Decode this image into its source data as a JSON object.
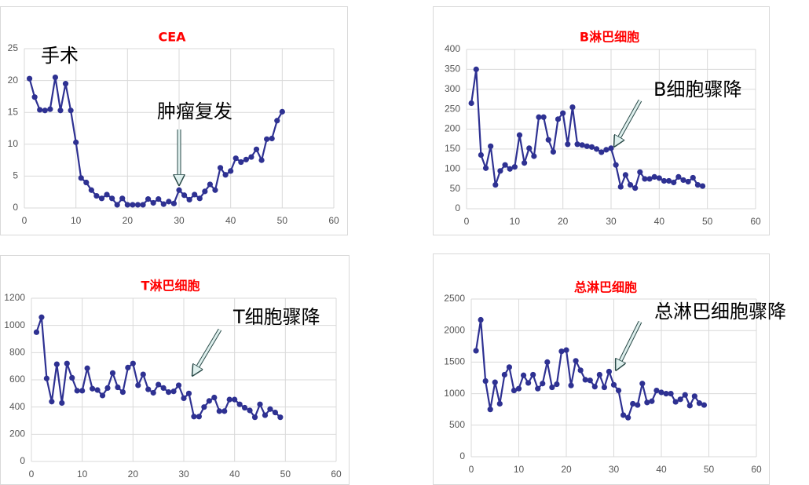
{
  "chart_data": [
    {
      "type": "line",
      "title": "CEA",
      "color": "#2e3192",
      "grid": true,
      "annotations": [
        "手术",
        "肿瘤复发"
      ],
      "x": [
        1,
        2,
        3,
        4,
        5,
        6,
        7,
        8,
        9,
        10,
        11,
        12,
        13,
        14,
        15,
        16,
        17,
        18,
        19,
        20,
        21,
        22,
        23,
        24,
        25,
        26,
        27,
        28,
        29,
        30,
        31,
        32,
        33,
        34,
        35,
        36,
        37,
        38,
        39,
        40,
        41,
        42,
        43,
        44,
        45,
        46,
        47,
        48,
        49,
        50
      ],
      "values": [
        20.3,
        17.4,
        15.4,
        15.3,
        15.5,
        20.5,
        15.3,
        19.5,
        15.3,
        10.3,
        4.7,
        4.0,
        2.8,
        1.9,
        1.5,
        2.1,
        1.5,
        0.5,
        1.5,
        0.5,
        0.5,
        0.5,
        0.5,
        1.4,
        0.8,
        1.4,
        0.6,
        1.0,
        0.7,
        2.8,
        2.0,
        1.3,
        2.1,
        1.5,
        2.6,
        3.7,
        2.8,
        6.3,
        5.2,
        5.8,
        7.8,
        7.2,
        7.6,
        8.0,
        9.2,
        7.5,
        10.8,
        10.9,
        13.7,
        15.1
      ],
      "xlim": [
        0,
        60
      ],
      "xticks": [
        0,
        10,
        20,
        30,
        40,
        50,
        60
      ],
      "ylim": [
        0,
        25
      ],
      "yticks": [
        0,
        5,
        10,
        15,
        20,
        25
      ]
    },
    {
      "type": "line",
      "title": "B淋巴细胞",
      "color": "#2e3192",
      "grid": true,
      "annotations": [
        "B细胞骤降"
      ],
      "x": [
        1,
        2,
        3,
        4,
        5,
        6,
        7,
        8,
        9,
        10,
        11,
        12,
        13,
        14,
        15,
        16,
        17,
        18,
        19,
        20,
        21,
        22,
        23,
        24,
        25,
        26,
        27,
        28,
        29,
        30,
        31,
        32,
        33,
        34,
        35,
        36,
        37,
        38,
        39,
        40,
        41,
        42,
        43,
        44,
        45,
        46,
        47,
        48,
        49
      ],
      "values": [
        265,
        350,
        135,
        102,
        157,
        60,
        95,
        110,
        100,
        105,
        185,
        115,
        152,
        132,
        230,
        230,
        173,
        143,
        225,
        240,
        162,
        255,
        162,
        160,
        157,
        155,
        150,
        142,
        148,
        152,
        110,
        55,
        85,
        60,
        52,
        92,
        75,
        75,
        80,
        77,
        70,
        70,
        66,
        80,
        72,
        68,
        78,
        60,
        57
      ],
      "xlim": [
        0,
        60
      ],
      "xticks": [
        0,
        10,
        20,
        30,
        40,
        50,
        60
      ],
      "ylim": [
        0,
        400
      ],
      "yticks": [
        0,
        50,
        100,
        150,
        200,
        250,
        300,
        350,
        400
      ]
    },
    {
      "type": "line",
      "title": "T淋巴细胞",
      "color": "#2e3192",
      "grid": true,
      "annotations": [
        "T细胞骤降"
      ],
      "x": [
        1,
        2,
        3,
        4,
        5,
        6,
        7,
        8,
        9,
        10,
        11,
        12,
        13,
        14,
        15,
        16,
        17,
        18,
        19,
        20,
        21,
        22,
        23,
        24,
        25,
        26,
        27,
        28,
        29,
        30,
        31,
        32,
        33,
        34,
        35,
        36,
        37,
        38,
        39,
        40,
        41,
        42,
        43,
        44,
        45,
        46,
        47,
        48,
        49
      ],
      "values": [
        950,
        1060,
        610,
        440,
        715,
        430,
        720,
        615,
        520,
        520,
        685,
        535,
        525,
        485,
        540,
        650,
        545,
        510,
        690,
        720,
        560,
        640,
        530,
        505,
        565,
        540,
        510,
        515,
        560,
        465,
        500,
        330,
        330,
        400,
        445,
        470,
        370,
        370,
        455,
        455,
        420,
        395,
        375,
        325,
        420,
        340,
        385,
        360,
        325
      ],
      "xlim": [
        0,
        60
      ],
      "xticks": [
        0,
        10,
        20,
        30,
        40,
        50,
        60
      ],
      "ylim": [
        0,
        1200
      ],
      "yticks": [
        0,
        200,
        400,
        600,
        800,
        1000,
        1200
      ]
    },
    {
      "type": "line",
      "title": "总淋巴细胞",
      "color": "#2e3192",
      "grid": true,
      "annotations": [
        "总淋巴细胞骤降"
      ],
      "x": [
        1,
        2,
        3,
        4,
        5,
        6,
        7,
        8,
        9,
        10,
        11,
        12,
        13,
        14,
        15,
        16,
        17,
        18,
        19,
        20,
        21,
        22,
        23,
        24,
        25,
        26,
        27,
        28,
        29,
        30,
        31,
        32,
        33,
        34,
        35,
        36,
        37,
        38,
        39,
        40,
        41,
        42,
        43,
        44,
        45,
        46,
        47,
        48,
        49
      ],
      "values": [
        1680,
        2170,
        1200,
        750,
        1180,
        840,
        1300,
        1420,
        1050,
        1080,
        1290,
        1170,
        1300,
        1080,
        1160,
        1500,
        1100,
        1150,
        1670,
        1690,
        1130,
        1520,
        1370,
        1220,
        1210,
        1110,
        1300,
        1100,
        1350,
        1140,
        1050,
        660,
        620,
        840,
        820,
        1160,
        860,
        880,
        1050,
        1020,
        1000,
        1000,
        870,
        910,
        980,
        810,
        960,
        850,
        820
      ],
      "xlim": [
        0,
        60
      ],
      "xticks": [
        0,
        10,
        20,
        30,
        40,
        50,
        60
      ],
      "ylim": [
        0,
        2500
      ],
      "yticks": [
        0,
        500,
        1000,
        1500,
        2000,
        2500
      ]
    }
  ]
}
